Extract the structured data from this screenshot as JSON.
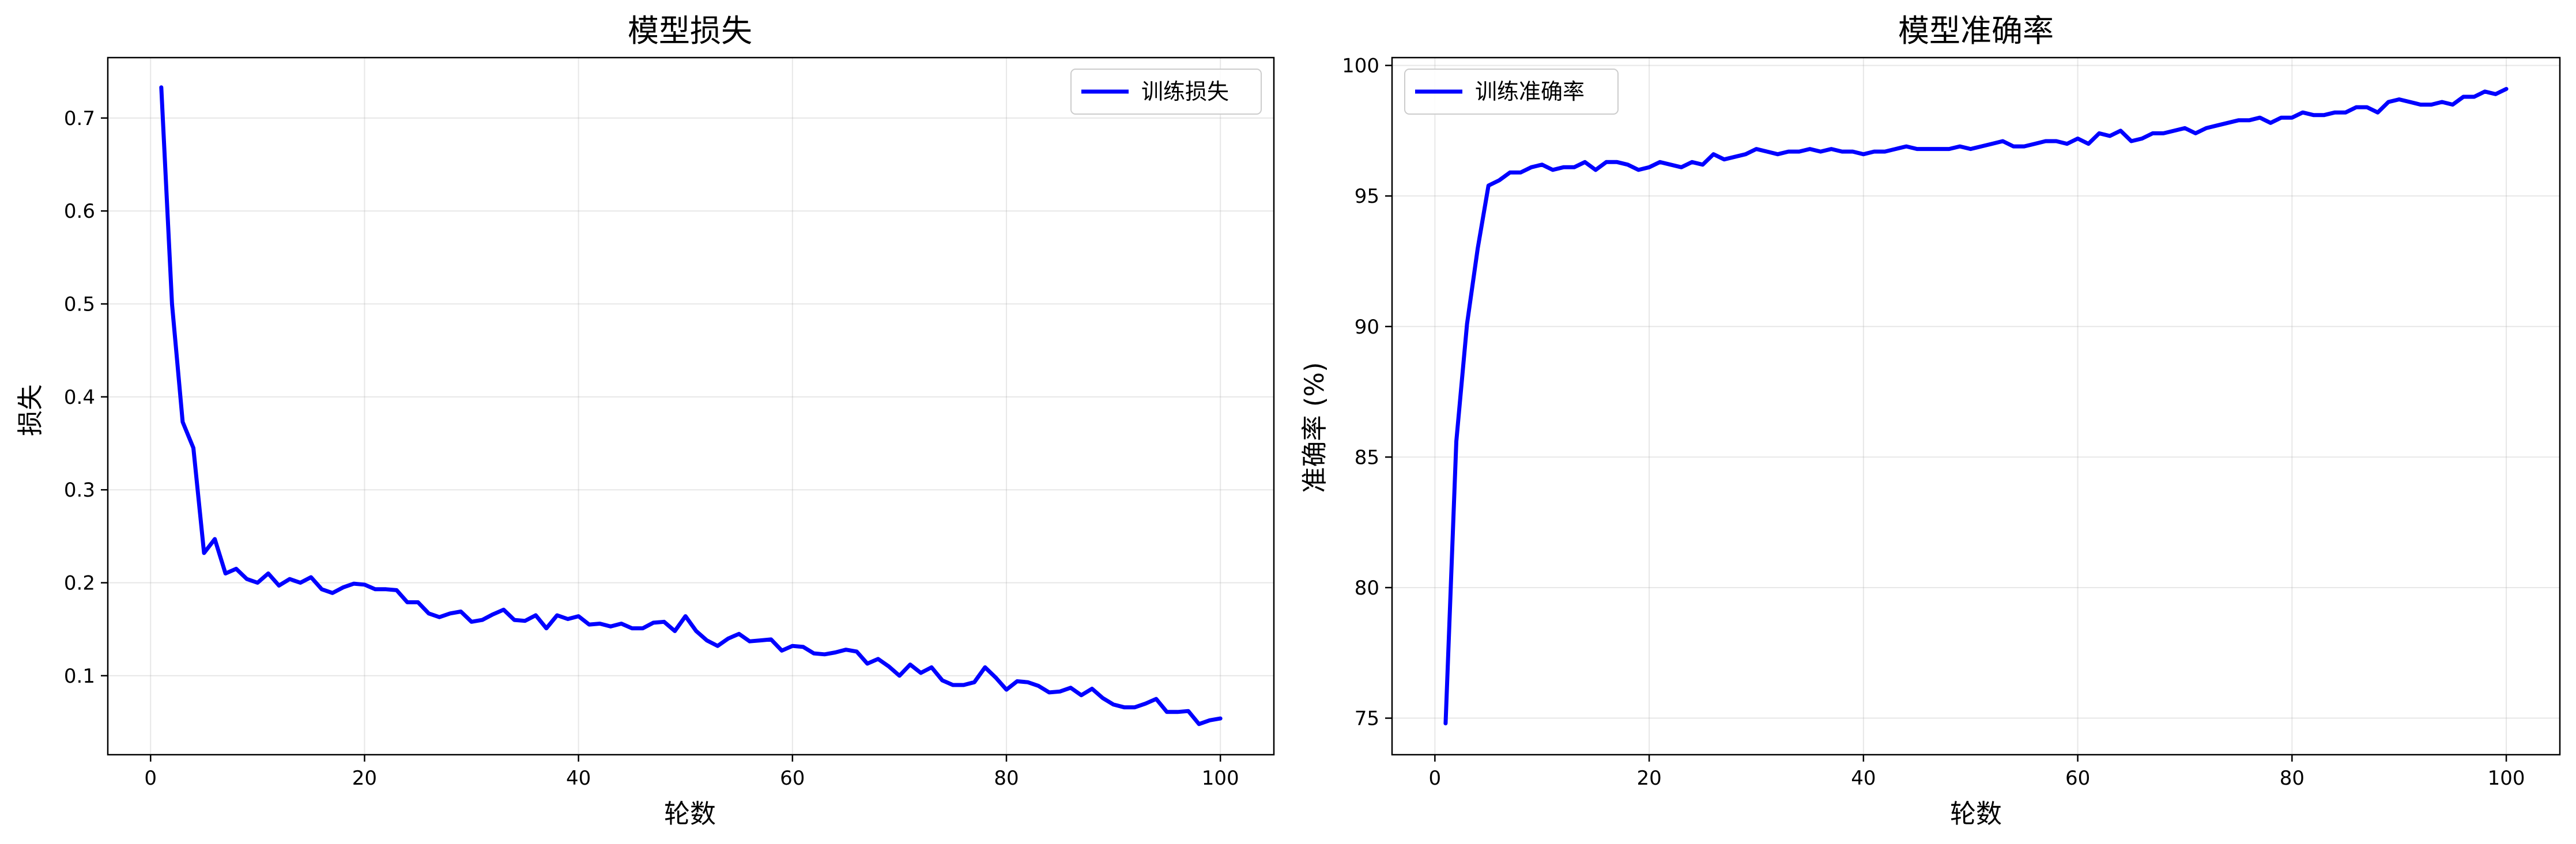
{
  "chart_data": [
    {
      "type": "line",
      "title": "模型损失",
      "xlabel": "轮数",
      "ylabel": "损失",
      "xlim": [
        -4.0,
        105.0
      ],
      "ylim": [
        0.015,
        0.765
      ],
      "xticks": [
        0,
        20,
        40,
        60,
        80,
        100
      ],
      "yticks": [
        0.1,
        0.2,
        0.3,
        0.4,
        0.5,
        0.6,
        0.7
      ],
      "ytick_labels": [
        "0.1",
        "0.2",
        "0.3",
        "0.4",
        "0.5",
        "0.6",
        "0.7"
      ],
      "grid": true,
      "legend_position": "upper right",
      "series": [
        {
          "name": "训练损失",
          "color": "#0000ff",
          "x": [
            1,
            2,
            3,
            4,
            5,
            6,
            7,
            8,
            9,
            10,
            11,
            12,
            13,
            14,
            15,
            16,
            17,
            18,
            19,
            20,
            21,
            22,
            23,
            24,
            25,
            26,
            27,
            28,
            29,
            30,
            31,
            32,
            33,
            34,
            35,
            36,
            37,
            38,
            39,
            40,
            41,
            42,
            43,
            44,
            45,
            46,
            47,
            48,
            49,
            50,
            51,
            52,
            53,
            54,
            55,
            56,
            57,
            58,
            59,
            60,
            61,
            62,
            63,
            64,
            65,
            66,
            67,
            68,
            69,
            70,
            71,
            72,
            73,
            74,
            75,
            76,
            77,
            78,
            79,
            80,
            81,
            82,
            83,
            84,
            85,
            86,
            87,
            88,
            89,
            90,
            91,
            92,
            93,
            94,
            95,
            96,
            97,
            98,
            99,
            100
          ],
          "values": [
            0.733,
            0.5,
            0.373,
            0.345,
            0.232,
            0.247,
            0.21,
            0.215,
            0.204,
            0.2,
            0.21,
            0.197,
            0.204,
            0.2,
            0.206,
            0.193,
            0.189,
            0.195,
            0.199,
            0.198,
            0.193,
            0.193,
            0.192,
            0.179,
            0.179,
            0.167,
            0.163,
            0.167,
            0.169,
            0.158,
            0.16,
            0.166,
            0.171,
            0.16,
            0.159,
            0.165,
            0.151,
            0.165,
            0.161,
            0.164,
            0.155,
            0.156,
            0.153,
            0.156,
            0.151,
            0.151,
            0.157,
            0.158,
            0.148,
            0.164,
            0.148,
            0.138,
            0.132,
            0.14,
            0.145,
            0.137,
            0.138,
            0.139,
            0.127,
            0.132,
            0.131,
            0.124,
            0.123,
            0.125,
            0.128,
            0.126,
            0.113,
            0.118,
            0.11,
            0.1,
            0.112,
            0.103,
            0.109,
            0.095,
            0.09,
            0.09,
            0.093,
            0.109,
            0.098,
            0.085,
            0.094,
            0.093,
            0.089,
            0.082,
            0.083,
            0.087,
            0.079,
            0.086,
            0.076,
            0.069,
            0.066,
            0.066,
            0.07,
            0.075,
            0.061,
            0.061,
            0.062,
            0.048,
            0.052,
            0.054
          ]
        }
      ]
    },
    {
      "type": "line",
      "title": "模型准确率",
      "xlabel": "轮数",
      "ylabel": "准确率 (%)",
      "xlim": [
        -4.0,
        105.0
      ],
      "ylim": [
        73.6,
        100.3
      ],
      "xticks": [
        0,
        20,
        40,
        60,
        80,
        100
      ],
      "yticks": [
        75,
        80,
        85,
        90,
        95,
        100
      ],
      "ytick_labels": [
        "75",
        "80",
        "85",
        "90",
        "95",
        "100"
      ],
      "grid": true,
      "legend_position": "upper left",
      "series": [
        {
          "name": "训练准确率",
          "color": "#0000ff",
          "x": [
            1,
            2,
            3,
            4,
            5,
            6,
            7,
            8,
            9,
            10,
            11,
            12,
            13,
            14,
            15,
            16,
            17,
            18,
            19,
            20,
            21,
            22,
            23,
            24,
            25,
            26,
            27,
            28,
            29,
            30,
            31,
            32,
            33,
            34,
            35,
            36,
            37,
            38,
            39,
            40,
            41,
            42,
            43,
            44,
            45,
            46,
            47,
            48,
            49,
            50,
            51,
            52,
            53,
            54,
            55,
            56,
            57,
            58,
            59,
            60,
            61,
            62,
            63,
            64,
            65,
            66,
            67,
            68,
            69,
            70,
            71,
            72,
            73,
            74,
            75,
            76,
            77,
            78,
            79,
            80,
            81,
            82,
            83,
            84,
            85,
            86,
            87,
            88,
            89,
            90,
            91,
            92,
            93,
            94,
            95,
            96,
            97,
            98,
            99,
            100
          ],
          "values": [
            74.8,
            85.6,
            90.1,
            93.0,
            95.4,
            95.6,
            95.9,
            95.9,
            96.1,
            96.2,
            96.0,
            96.1,
            96.1,
            96.3,
            96.0,
            96.3,
            96.3,
            96.2,
            96.0,
            96.1,
            96.3,
            96.2,
            96.1,
            96.3,
            96.2,
            96.6,
            96.4,
            96.5,
            96.6,
            96.8,
            96.7,
            96.6,
            96.7,
            96.7,
            96.8,
            96.7,
            96.8,
            96.7,
            96.7,
            96.6,
            96.7,
            96.7,
            96.8,
            96.9,
            96.8,
            96.8,
            96.8,
            96.8,
            96.9,
            96.8,
            96.9,
            97.0,
            97.1,
            96.9,
            96.9,
            97.0,
            97.1,
            97.1,
            97.0,
            97.2,
            97.0,
            97.4,
            97.3,
            97.5,
            97.1,
            97.2,
            97.4,
            97.4,
            97.5,
            97.6,
            97.4,
            97.6,
            97.7,
            97.8,
            97.9,
            97.9,
            98.0,
            97.8,
            98.0,
            98.0,
            98.2,
            98.1,
            98.1,
            98.2,
            98.2,
            98.4,
            98.4,
            98.2,
            98.6,
            98.7,
            98.6,
            98.5,
            98.5,
            98.6,
            98.5,
            98.8,
            98.8,
            99.0,
            98.9,
            99.1
          ]
        }
      ]
    }
  ]
}
